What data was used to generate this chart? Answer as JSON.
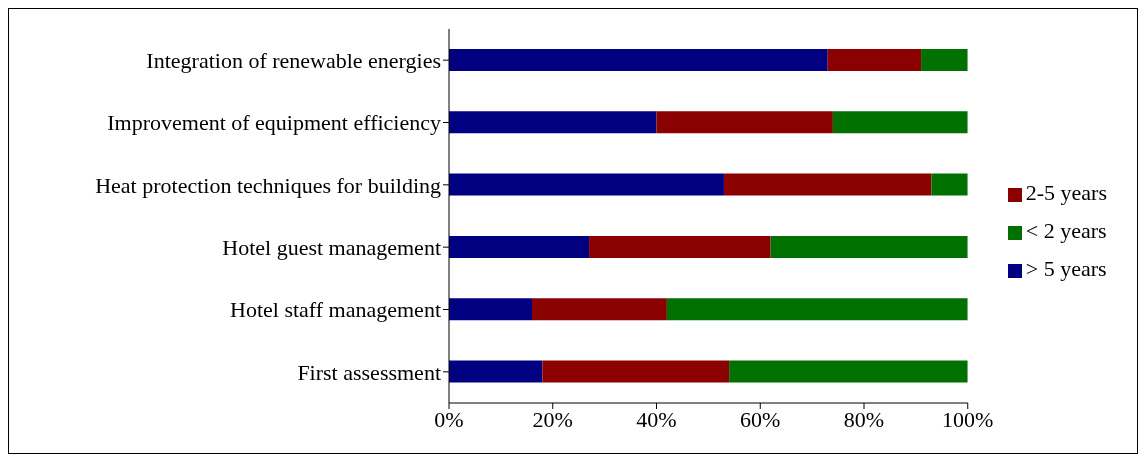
{
  "chart_data": {
    "type": "bar",
    "orientation": "horizontal",
    "stacked": true,
    "categories": [
      "Integration of renewable energies",
      "Improvement of equipment efficiency",
      "Heat protection techniques for building",
      "Hotel guest management",
      "Hotel staff management",
      "First assessment"
    ],
    "series": [
      {
        "name": "> 5 years",
        "color": "#000080",
        "values": [
          73,
          40,
          53,
          27,
          16,
          18
        ]
      },
      {
        "name": "2-5 years",
        "color": "#8b0000",
        "values": [
          18,
          34,
          40,
          35,
          26,
          36
        ]
      },
      {
        "name": "< 2 years",
        "color": "#007000",
        "values": [
          9,
          26,
          7,
          38,
          58,
          46
        ]
      }
    ],
    "xlim": [
      0,
      100
    ],
    "xticks": [
      {
        "value": 0,
        "label": "0%"
      },
      {
        "value": 20,
        "label": "20%"
      },
      {
        "value": 40,
        "label": "40%"
      },
      {
        "value": 60,
        "label": "60%"
      },
      {
        "value": 80,
        "label": "80%"
      },
      {
        "value": 100,
        "label": "100%"
      }
    ],
    "grid": false,
    "legend": "right"
  }
}
